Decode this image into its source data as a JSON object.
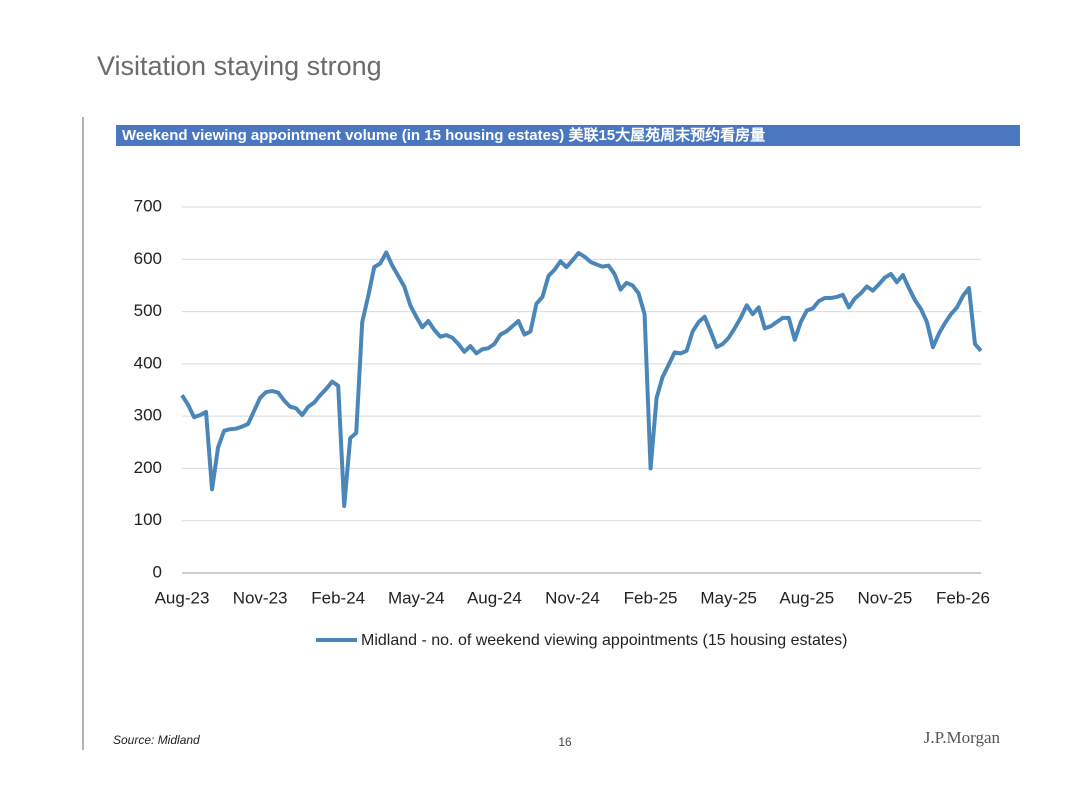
{
  "page": {
    "title": "Visitation staying strong",
    "source": "Source: Midland",
    "page_number": 16,
    "logo": "J.P.Morgan"
  },
  "chart_data": {
    "type": "line",
    "title": "Weekend viewing appointment volume (in 15 housing estates) 美联15大屋苑周末预约看房量",
    "categories": [
      "Aug-23",
      null,
      null,
      null,
      null,
      null,
      null,
      null,
      null,
      null,
      null,
      null,
      null,
      "Nov-23",
      null,
      null,
      null,
      null,
      null,
      null,
      null,
      null,
      null,
      null,
      null,
      null,
      "Feb-24",
      null,
      null,
      null,
      null,
      null,
      null,
      null,
      null,
      null,
      null,
      null,
      null,
      "May-24",
      null,
      null,
      null,
      null,
      null,
      null,
      null,
      null,
      null,
      null,
      null,
      null,
      "Aug-24",
      null,
      null,
      null,
      null,
      null,
      null,
      null,
      null,
      null,
      null,
      null,
      null,
      "Nov-24",
      null,
      null,
      null,
      null,
      null,
      null,
      null,
      null,
      null,
      null,
      null,
      null,
      "Feb-25",
      null,
      null,
      null,
      null,
      null,
      null,
      null,
      null,
      null,
      null,
      null,
      null,
      "May-25",
      null,
      null,
      null,
      null,
      null,
      null,
      null,
      null,
      null,
      null,
      null,
      null,
      "Aug-25",
      null,
      null,
      null,
      null,
      null,
      null,
      null,
      null,
      null,
      null,
      null,
      null,
      "Nov-25",
      null,
      null,
      null,
      null,
      null,
      null,
      null,
      null,
      null,
      null,
      null,
      null,
      "Feb-26",
      null,
      null,
      null
    ],
    "series": [
      {
        "name": "Midland - no. of weekend viewing appointments (15 housing estates)",
        "color": "#4a86b8",
        "values": [
          340,
          322,
          298,
          302,
          308,
          160,
          240,
          272,
          275,
          276,
          280,
          285,
          310,
          335,
          346,
          348,
          345,
          330,
          318,
          315,
          302,
          318,
          326,
          340,
          352,
          366,
          358,
          128,
          258,
          268,
          480,
          530,
          585,
          592,
          613,
          588,
          568,
          548,
          512,
          490,
          470,
          482,
          465,
          452,
          455,
          450,
          438,
          423,
          434,
          420,
          428,
          430,
          438,
          456,
          462,
          472,
          482,
          456,
          462,
          515,
          528,
          568,
          580,
          596,
          585,
          598,
          612,
          605,
          595,
          590,
          586,
          588,
          572,
          542,
          555,
          550,
          535,
          495,
          200,
          335,
          375,
          398,
          422,
          420,
          425,
          462,
          480,
          490,
          462,
          432,
          438,
          450,
          468,
          488,
          512,
          495,
          508,
          468,
          472,
          480,
          488,
          488,
          446,
          480,
          502,
          506,
          520,
          526,
          526,
          528,
          532,
          508,
          525,
          535,
          548,
          540,
          552,
          565,
          572,
          556,
          570,
          545,
          522,
          505,
          480,
          432,
          458,
          478,
          495,
          508,
          530,
          545,
          438,
          425
        ]
      }
    ],
    "ylim": [
      0,
      700
    ],
    "yticks": [
      0,
      100,
      200,
      300,
      400,
      500,
      600,
      700
    ],
    "grid": true
  }
}
